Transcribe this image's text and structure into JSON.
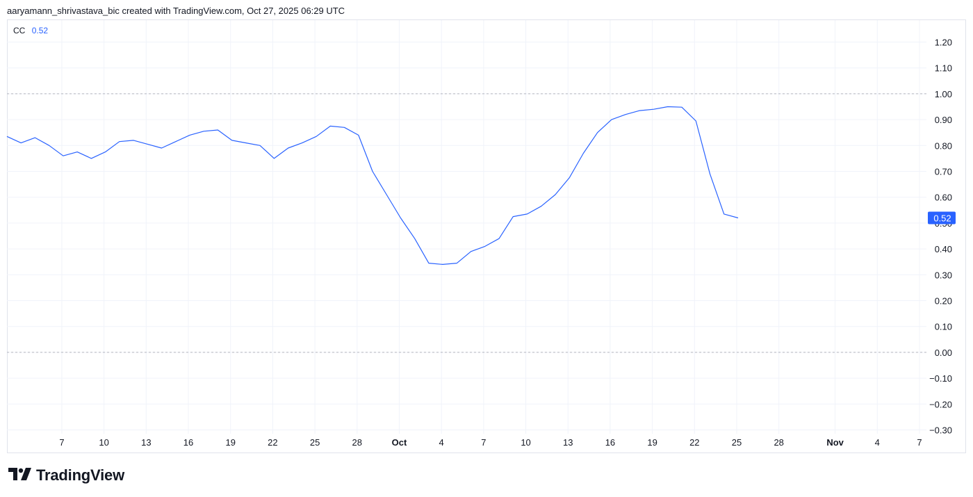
{
  "header": {
    "caption": "aaryamann_shrivastava_bic created with TradingView.com, Oct 27, 2025 06:29 UTC"
  },
  "legend": {
    "name": "CC",
    "value": "0.52"
  },
  "brand": {
    "name": "TradingView",
    "logo_icon": "tradingview-logo-icon"
  },
  "colors": {
    "series": "#2962ff",
    "text": "#131722",
    "grid": "#f0f3fa",
    "refline": "#b2b5be",
    "badge_text": "#ffffff"
  },
  "chart_data": {
    "type": "line",
    "ylim": [
      -0.35,
      1.25
    ],
    "yticks": [
      "1.20",
      "1.10",
      "1.00",
      "0.90",
      "0.80",
      "0.70",
      "0.60",
      "0.50",
      "0.40",
      "0.30",
      "0.20",
      "0.10",
      "0.00",
      "−0.10",
      "−0.20",
      "−0.30"
    ],
    "xticks": [
      {
        "label": "7",
        "day": 7
      },
      {
        "label": "10",
        "day": 10
      },
      {
        "label": "13",
        "day": 13
      },
      {
        "label": "16",
        "day": 16
      },
      {
        "label": "19",
        "day": 19
      },
      {
        "label": "22",
        "day": 22
      },
      {
        "label": "25",
        "day": 25
      },
      {
        "label": "28",
        "day": 28
      },
      {
        "label": "Oct",
        "day": 31,
        "bold": true
      },
      {
        "label": "4",
        "day": 34
      },
      {
        "label": "7",
        "day": 37
      },
      {
        "label": "10",
        "day": 40
      },
      {
        "label": "13",
        "day": 43
      },
      {
        "label": "16",
        "day": 46
      },
      {
        "label": "19",
        "day": 49
      },
      {
        "label": "22",
        "day": 52
      },
      {
        "label": "25",
        "day": 55
      },
      {
        "label": "28",
        "day": 58
      },
      {
        "label": "Nov",
        "day": 62,
        "bold": true
      },
      {
        "label": "4",
        "day": 65
      },
      {
        "label": "7",
        "day": 68
      }
    ],
    "x_start_day": 5,
    "x_end_day": 71,
    "reference_lines": [
      1.0,
      0.0
    ],
    "last_value_label": "0.52",
    "series": [
      {
        "values": [
          0.835,
          0.81,
          0.83,
          0.8,
          0.76,
          0.775,
          0.75,
          0.775,
          0.815,
          0.82,
          0.805,
          0.79,
          0.815,
          0.84,
          0.855,
          0.86,
          0.82,
          0.81,
          0.8,
          0.75,
          0.79,
          0.81,
          0.835,
          0.875,
          0.87,
          0.84,
          0.7,
          0.61,
          0.52,
          0.44,
          0.345,
          0.34,
          0.345,
          0.39,
          0.41,
          0.44,
          0.525,
          0.535,
          0.565,
          0.61,
          0.675,
          0.77,
          0.85,
          0.9,
          0.92,
          0.935,
          0.94,
          0.95,
          0.948,
          0.895,
          0.69,
          0.535,
          0.52
        ]
      }
    ]
  }
}
